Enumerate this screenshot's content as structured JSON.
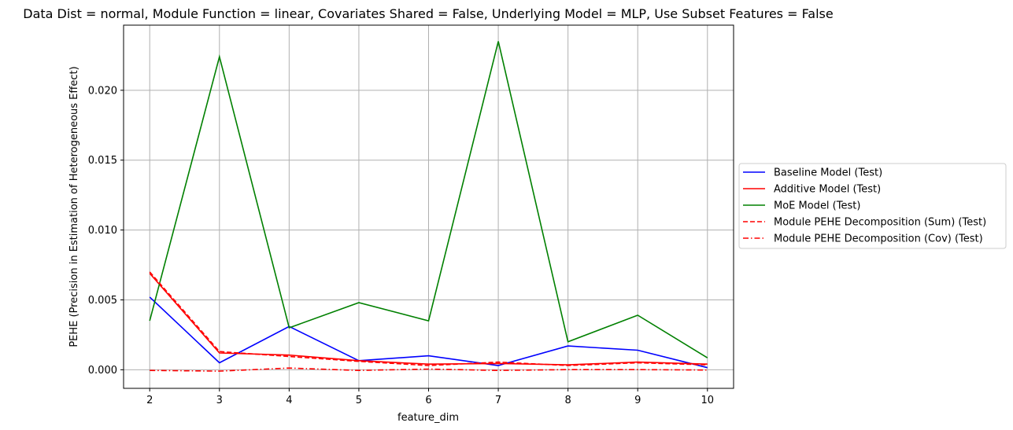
{
  "chart_data": {
    "type": "line",
    "title": "Data Dist = normal, Module Function = linear, Covariates Shared = False, Underlying Model = MLP, Use Subset Features = False",
    "xlabel": "feature_dim",
    "ylabel": "PEHE (Precision in Estimation of Heterogeneous Effect)",
    "x": [
      2,
      3,
      4,
      5,
      6,
      7,
      8,
      9,
      10
    ],
    "xlim": [
      1.625,
      10.375
    ],
    "ylim": [
      -0.00133,
      0.02466
    ],
    "xticks": [
      "2",
      "3",
      "4",
      "5",
      "6",
      "7",
      "8",
      "9",
      "10"
    ],
    "yticks": [
      {
        "value": 0.0,
        "label": "0.000"
      },
      {
        "value": 0.005,
        "label": "0.005"
      },
      {
        "value": 0.01,
        "label": "0.010"
      },
      {
        "value": 0.015,
        "label": "0.015"
      },
      {
        "value": 0.02,
        "label": "0.020"
      }
    ],
    "grid": true,
    "legend_position": "outside-right",
    "series": [
      {
        "name": "Baseline Model (Test)",
        "color": "#0000ff",
        "dash": "solid",
        "values": [
          0.0052,
          0.0005,
          0.0031,
          0.00065,
          0.001,
          0.0003,
          0.0017,
          0.0014,
          0.00015
        ]
      },
      {
        "name": "Additive Model (Test)",
        "color": "#ff0000",
        "dash": "solid",
        "values": [
          0.0069,
          0.0012,
          0.00105,
          0.00065,
          0.0004,
          0.00045,
          0.00035,
          0.00055,
          0.0004
        ]
      },
      {
        "name": "MoE Model (Test)",
        "color": "#008000",
        "dash": "solid",
        "values": [
          0.0035,
          0.0224,
          0.003,
          0.0048,
          0.0035,
          0.0235,
          0.002,
          0.0039,
          0.00085
        ]
      },
      {
        "name": "Module PEHE Decomposition (Sum) (Test)",
        "color": "#ff0000",
        "dash": "dashed",
        "values": [
          0.007,
          0.0013,
          0.00095,
          0.0006,
          0.0003,
          0.00055,
          0.0003,
          0.0005,
          0.00035
        ]
      },
      {
        "name": "Module PEHE Decomposition (Cov) (Test)",
        "color": "#ff0000",
        "dash": "dashdot",
        "values": [
          -5e-05,
          -0.0001,
          0.00012,
          -5e-05,
          5e-05,
          -5e-05,
          1e-05,
          1e-05,
          -2e-05
        ]
      }
    ]
  }
}
